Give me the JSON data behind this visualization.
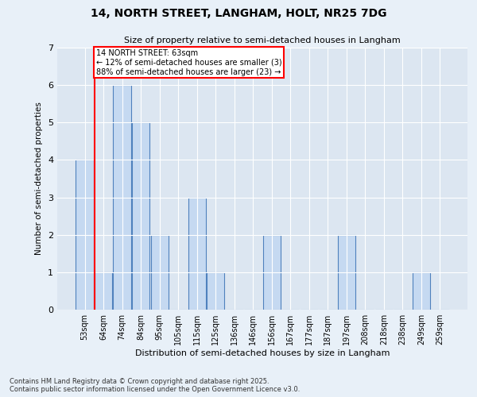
{
  "title_line1": "14, NORTH STREET, LANGHAM, HOLT, NR25 7DG",
  "title_line2": "Size of property relative to semi-detached houses in Langham",
  "xlabel": "Distribution of semi-detached houses by size in Langham",
  "ylabel": "Number of semi-detached properties",
  "categories": [
    "53sqm",
    "64sqm",
    "74sqm",
    "84sqm",
    "95sqm",
    "105sqm",
    "115sqm",
    "125sqm",
    "136sqm",
    "146sqm",
    "156sqm",
    "167sqm",
    "177sqm",
    "187sqm",
    "197sqm",
    "208sqm",
    "218sqm",
    "238sqm",
    "249sqm",
    "259sqm"
  ],
  "values": [
    4,
    1,
    6,
    5,
    2,
    0,
    3,
    1,
    0,
    0,
    2,
    0,
    0,
    0,
    2,
    0,
    0,
    0,
    1,
    0
  ],
  "bar_color": "#c5d9f1",
  "bar_edge_color": "#4f81bd",
  "annotation_title": "14 NORTH STREET: 63sqm",
  "annotation_line1": "← 12% of semi-detached houses are smaller (3)",
  "annotation_line2": "88% of semi-detached houses are larger (23) →",
  "redline_index": 1,
  "ylim": [
    0,
    7
  ],
  "yticks": [
    0,
    1,
    2,
    3,
    4,
    5,
    6,
    7
  ],
  "footer_line1": "Contains HM Land Registry data © Crown copyright and database right 2025.",
  "footer_line2": "Contains public sector information licensed under the Open Government Licence v3.0.",
  "bg_color": "#e8f0f8",
  "plot_bg_color": "#dce6f1"
}
